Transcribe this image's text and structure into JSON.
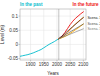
{
  "chart_data": {
    "type": "line",
    "xlabel": "Years",
    "ylabel": "Level (m)",
    "xlim": [
      1860,
      2110
    ],
    "ylim": [
      -0.055,
      0.125
    ],
    "xticks": [
      1900,
      1950,
      2000,
      2050,
      2100
    ],
    "yticks": [
      -0.05,
      0,
      0.05,
      0.1
    ],
    "grid": true,
    "vline": 2007,
    "annotations": [
      {
        "text": "In the past",
        "color": "#00bbcc"
      },
      {
        "text": "In the future",
        "color": "#ee1111"
      }
    ],
    "series": [
      {
        "color": "#00bbcc",
        "x": [
          1860,
          1870,
          1880,
          1890,
          1900,
          1910,
          1920,
          1930,
          1940,
          1950,
          1960,
          1970,
          1980,
          1990,
          2000,
          2007
        ],
        "values": [
          -0.042,
          -0.04,
          -0.038,
          -0.036,
          -0.033,
          -0.03,
          -0.026,
          -0.022,
          -0.018,
          -0.012,
          -0.006,
          0.0,
          0.005,
          0.01,
          0.016,
          0.02
        ]
      },
      {
        "color": "#ee1111",
        "x": [
          2007,
          2020,
          2030,
          2040,
          2050,
          2060,
          2070,
          2080,
          2090,
          2100
        ],
        "values": [
          0.02,
          0.03,
          0.042,
          0.056,
          0.07,
          0.082,
          0.092,
          0.1,
          0.108,
          0.115
        ]
      },
      {
        "color": "#ff7700",
        "x": [
          2007,
          2020,
          2030,
          2040,
          2050,
          2060,
          2070,
          2080,
          2090,
          2100
        ],
        "values": [
          0.02,
          0.026,
          0.034,
          0.043,
          0.053,
          0.063,
          0.072,
          0.08,
          0.088,
          0.095
        ]
      },
      {
        "color": "#ffaa00",
        "x": [
          2007,
          2020,
          2030,
          2040,
          2050,
          2060,
          2070,
          2080,
          2090,
          2100
        ],
        "values": [
          0.02,
          0.024,
          0.028,
          0.033,
          0.039,
          0.045,
          0.052,
          0.058,
          0.065,
          0.072
        ]
      },
      {
        "name": "Scena. 1",
        "color": "#111111",
        "x": [
          2007,
          2100
        ],
        "values": [
          0.02,
          0.095
        ]
      },
      {
        "name": "Scena. 2",
        "color": "#444444",
        "x": [
          2007,
          2100
        ],
        "values": [
          0.02,
          0.072
        ]
      },
      {
        "name": "Scena. 3",
        "color": "#777777",
        "x": [
          2007,
          2100
        ],
        "values": [
          0.02,
          0.055
        ]
      }
    ]
  }
}
